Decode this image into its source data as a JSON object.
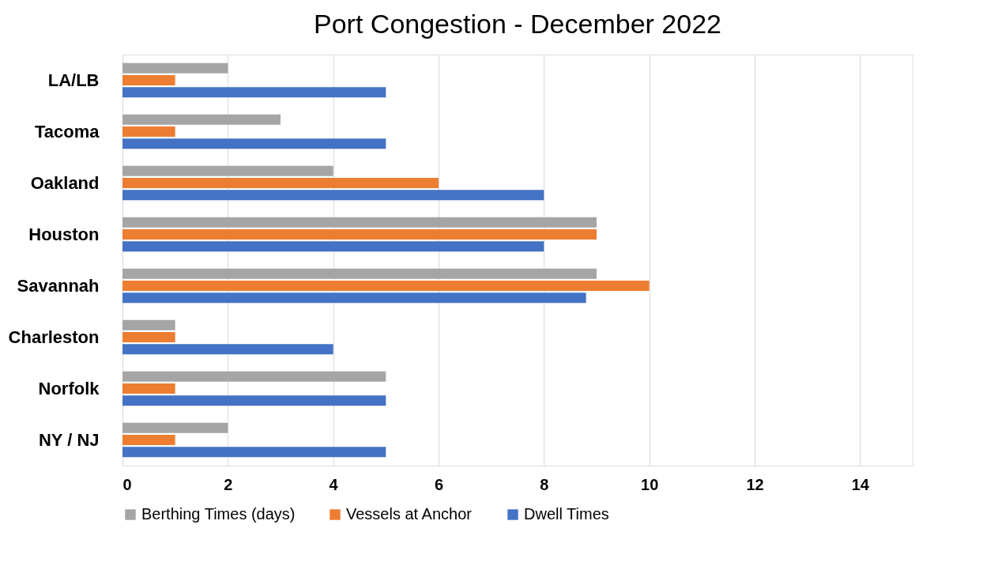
{
  "chart_data": {
    "type": "bar",
    "orientation": "horizontal",
    "title": "Port Congestion - December 2022",
    "categories": [
      "LA/LB",
      "Tacoma",
      "Oakland",
      "Houston",
      "Savannah",
      "Charleston",
      "Norfolk",
      "NY / NJ"
    ],
    "series": [
      {
        "name": "Berthing Times (days)",
        "color": "#a5a5a5",
        "values": [
          2,
          3,
          4,
          9,
          9,
          1,
          5,
          2
        ]
      },
      {
        "name": "Vessels at Anchor",
        "color": "#ed7d31",
        "values": [
          1,
          1,
          6,
          9,
          10,
          1,
          1,
          1
        ]
      },
      {
        "name": "Dwell Times",
        "color": "#4472c4",
        "values": [
          5,
          5,
          8,
          8,
          8.8,
          4,
          5,
          5
        ]
      }
    ],
    "xlim": [
      0,
      15
    ],
    "xticks": [
      0,
      2,
      4,
      6,
      8,
      10,
      12,
      14
    ],
    "grid": "x",
    "legend": "bottom"
  }
}
